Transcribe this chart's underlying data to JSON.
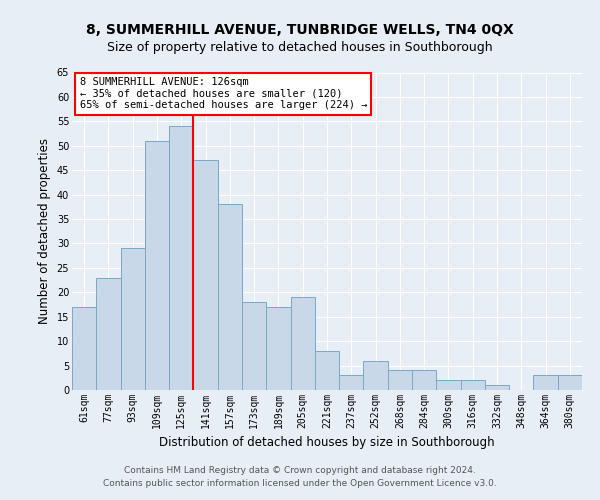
{
  "title": "8, SUMMERHILL AVENUE, TUNBRIDGE WELLS, TN4 0QX",
  "subtitle": "Size of property relative to detached houses in Southborough",
  "xlabel": "Distribution of detached houses by size in Southborough",
  "ylabel": "Number of detached properties",
  "footer_line1": "Contains HM Land Registry data © Crown copyright and database right 2024.",
  "footer_line2": "Contains public sector information licensed under the Open Government Licence v3.0.",
  "categories": [
    "61sqm",
    "77sqm",
    "93sqm",
    "109sqm",
    "125sqm",
    "141sqm",
    "157sqm",
    "173sqm",
    "189sqm",
    "205sqm",
    "221sqm",
    "237sqm",
    "252sqm",
    "268sqm",
    "284sqm",
    "300sqm",
    "316sqm",
    "332sqm",
    "348sqm",
    "364sqm",
    "380sqm"
  ],
  "values": [
    17,
    23,
    29,
    51,
    54,
    47,
    38,
    18,
    17,
    19,
    8,
    3,
    6,
    4,
    4,
    2,
    2,
    1,
    0,
    3,
    3
  ],
  "bar_color": "#c8d8e8",
  "bar_edge_color": "#7aa8c8",
  "vline_x": 4.5,
  "vline_color": "red",
  "annotation_box_text": "8 SUMMERHILL AVENUE: 126sqm\n← 35% of detached houses are smaller (120)\n65% of semi-detached houses are larger (224) →",
  "ylim": [
    0,
    65
  ],
  "yticks": [
    0,
    5,
    10,
    15,
    20,
    25,
    30,
    35,
    40,
    45,
    50,
    55,
    60,
    65
  ],
  "background_color": "#e8eef6",
  "plot_bg_color": "#e8eef6",
  "title_fontsize": 10,
  "subtitle_fontsize": 9,
  "xlabel_fontsize": 8.5,
  "ylabel_fontsize": 8.5,
  "tick_fontsize": 7,
  "footer_fontsize": 6.5,
  "annotation_fontsize": 7.5
}
